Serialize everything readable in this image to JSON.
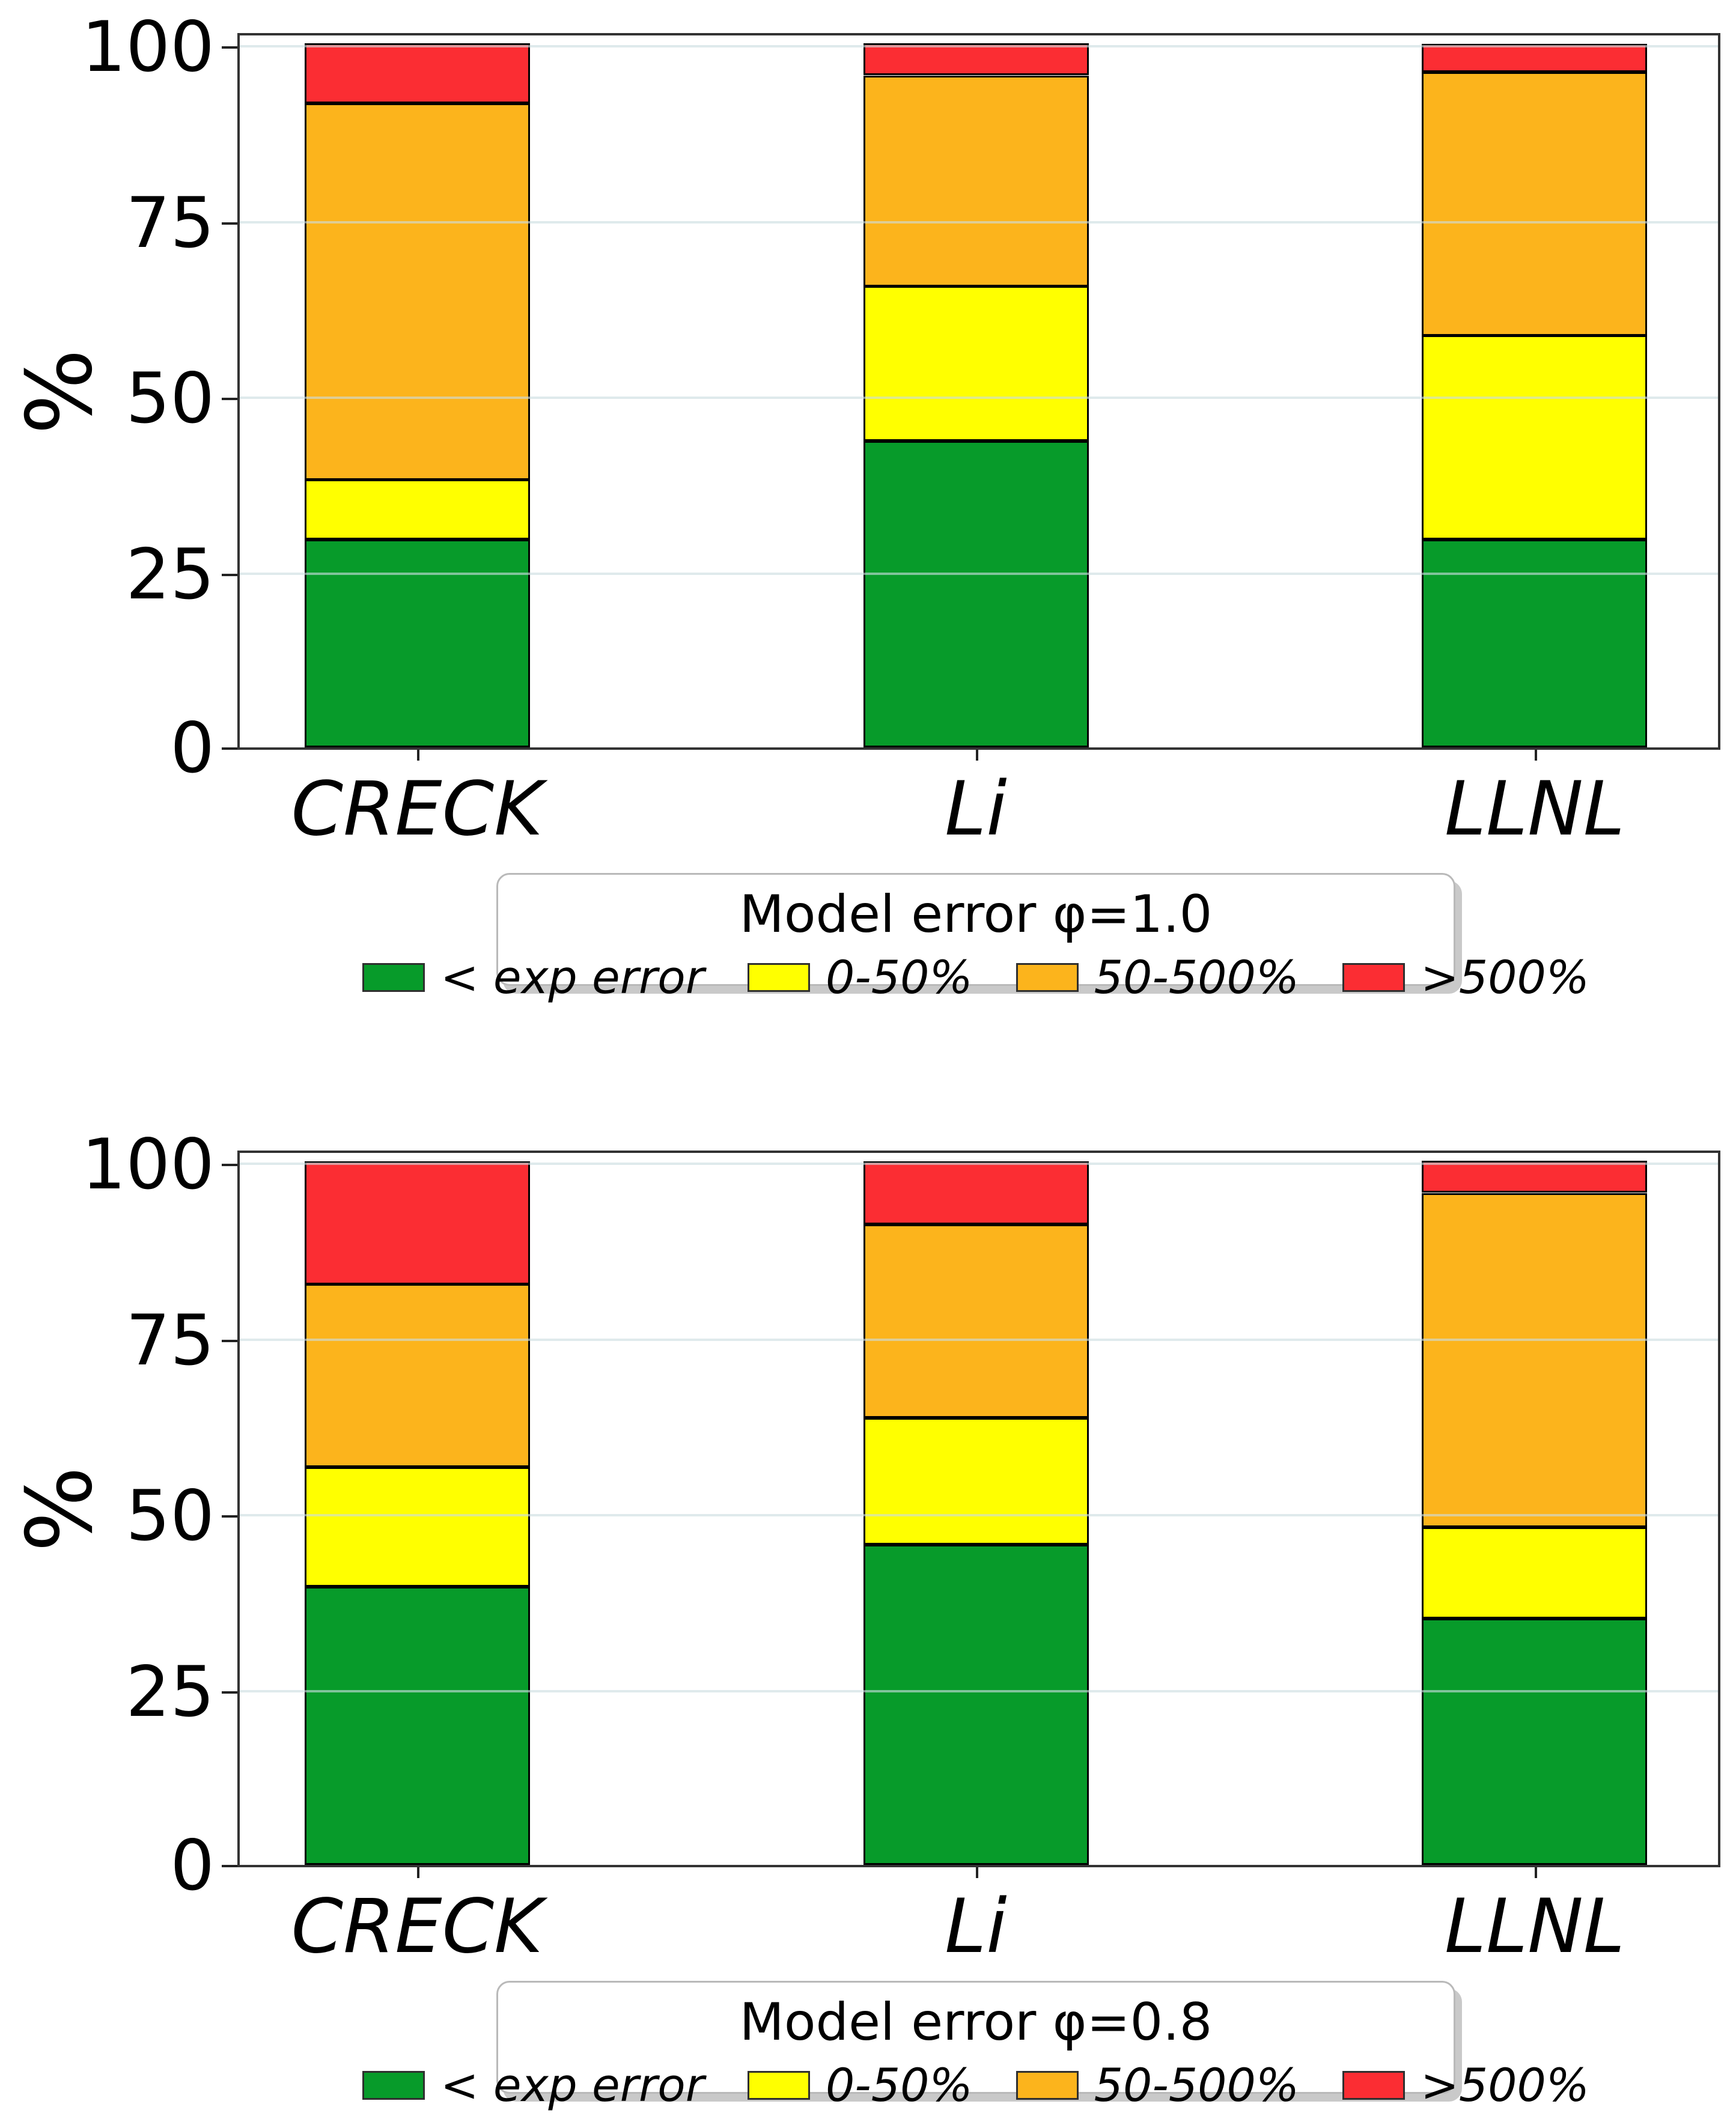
{
  "figure": {
    "background": "#ffffff",
    "ylabel": "%"
  },
  "palette": {
    "green": "#079B2A",
    "yellow": "#FFFF00",
    "orange": "#FCB41C",
    "red": "#FB2D33",
    "bar_edge": "#000000",
    "spine": "#333333",
    "gridline": "#E3E9EA",
    "legend_border": "#B9B9B9",
    "legend_shadow": "#C9C9C9",
    "text": "#000000"
  },
  "chart_data": [
    {
      "type": "bar",
      "stacked": true,
      "title": "Model error φ=1.0",
      "ylabel": "%",
      "xlabel": "",
      "categories": [
        "CRECK",
        "Li",
        "LLNL"
      ],
      "yticks": [
        0,
        25,
        50,
        75,
        100
      ],
      "ylim": [
        0,
        101.85
      ],
      "grid": "horizontal",
      "legend_position": "below-center",
      "series": [
        {
          "name": "< exp error",
          "color": "#079B2A",
          "values": [
            29.5,
            43.5,
            29.5
          ]
        },
        {
          "name": "0-50%",
          "color": "#FFFF00",
          "values": [
            8.5,
            22.0,
            29.0
          ]
        },
        {
          "name": "50-500%",
          "color": "#FCB41C",
          "values": [
            53.5,
            30.0,
            37.5
          ]
        },
        {
          "name": ">500%",
          "color": "#FB2D33",
          "values": [
            8.5,
            4.5,
            4.0
          ]
        }
      ]
    },
    {
      "type": "bar",
      "stacked": true,
      "title": "Model error φ=0.8",
      "ylabel": "%",
      "xlabel": "",
      "categories": [
        "CRECK",
        "Li",
        "LLNL"
      ],
      "yticks": [
        0,
        25,
        50,
        75,
        100
      ],
      "ylim": [
        0,
        101.85
      ],
      "grid": "horizontal",
      "legend_position": "below-center",
      "series": [
        {
          "name": "< exp error",
          "color": "#079B2A",
          "values": [
            39.5,
            45.5,
            35.0
          ]
        },
        {
          "name": "0-50%",
          "color": "#FFFF00",
          "values": [
            17.0,
            18.0,
            13.0
          ]
        },
        {
          "name": "50-500%",
          "color": "#FCB41C",
          "values": [
            26.0,
            27.5,
            47.5
          ]
        },
        {
          "name": ">500%",
          "color": "#FB2D33",
          "values": [
            17.5,
            9.0,
            4.5
          ]
        }
      ]
    }
  ]
}
